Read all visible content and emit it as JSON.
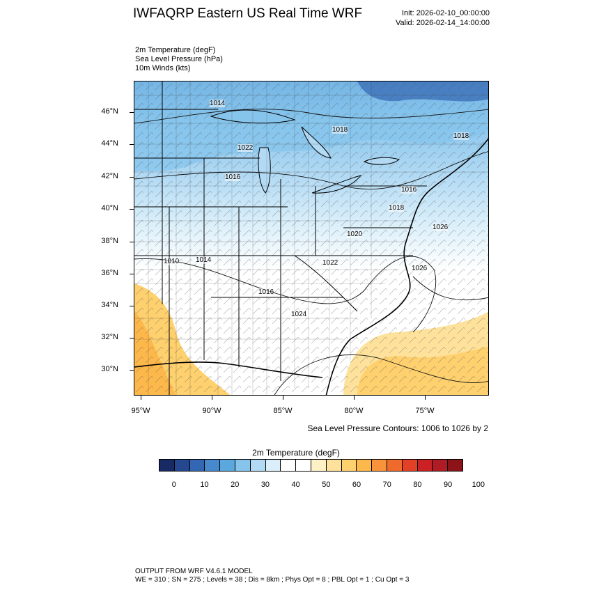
{
  "header": {
    "title": "IWFAQRP Eastern US Real Time WRF",
    "init": "Init: 2026-02-10_00:00:00",
    "valid": "Valid: 2026-02-14_14:00:00"
  },
  "fields": [
    "2m Temperature   (degF)",
    "Sea Level Pressure   (hPa)",
    "10m Winds   (kts)"
  ],
  "map": {
    "lat_labels": [
      "46°N",
      "44°N",
      "42°N",
      "40°N",
      "38°N",
      "36°N",
      "34°N",
      "32°N",
      "30°N"
    ],
    "lon_labels": [
      "95°W",
      "90°W",
      "85°W",
      "80°W",
      "75°W"
    ],
    "contour_note": "Sea Level Pressure Contours: 1006 to 1026 by 2",
    "pressure_labels": [
      "1014",
      "1018",
      "1018",
      "1016",
      "1016",
      "1018",
      "1020",
      "1022",
      "1024",
      "1026",
      "1010",
      "1014",
      "1016",
      "1022",
      "1026"
    ],
    "colors": {
      "land_outline": "#000000",
      "cold": "#4b8fd0",
      "warm": "#fdb84b"
    }
  },
  "colorbar": {
    "title": "2m Temperature  (degF)",
    "colors": [
      "#172a63",
      "#24478f",
      "#3366b3",
      "#4689cc",
      "#5ba8df",
      "#86c4ec",
      "#b2daf4",
      "#daeffa",
      "#ffffff",
      "#ffffff",
      "#fff1c6",
      "#fee29c",
      "#fed06e",
      "#fdb84b",
      "#f8933b",
      "#ef6a2d",
      "#e24127",
      "#cc2124",
      "#b01c23",
      "#8c1318"
    ],
    "labels": [
      "0",
      "10",
      "20",
      "30",
      "40",
      "50",
      "60",
      "70",
      "80",
      "90",
      "100"
    ]
  },
  "footer": {
    "line1": "OUTPUT FROM WRF V4.6.1 MODEL",
    "line2": "WE = 310 ; SN = 275 ; Levels = 38 ; Dis = 8km ; Phys Opt = 8 ; PBL Opt = 1 ; Cu Opt = 3"
  }
}
